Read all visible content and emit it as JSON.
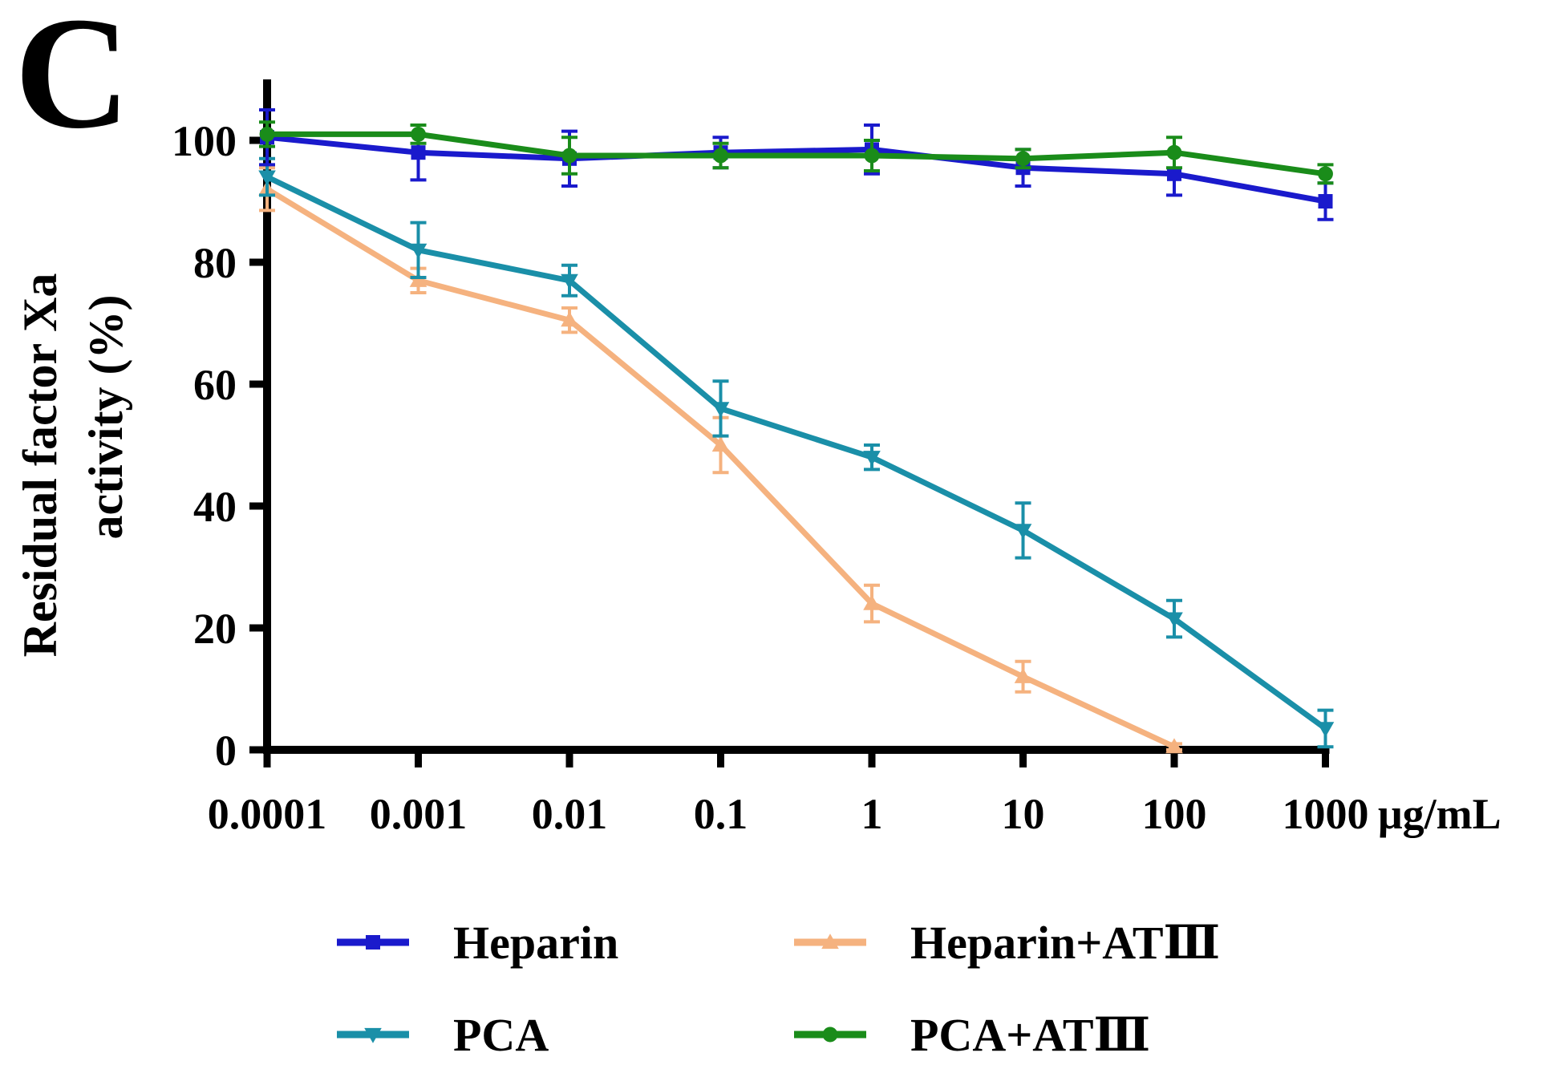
{
  "panel_label": "C",
  "chart_data": {
    "type": "line",
    "title": "",
    "ylabel_line1": "Residual factor Xa",
    "ylabel_line2": "activity (%)",
    "xunit": "μg/mL",
    "x_scale": "log",
    "categories": [
      "0.0001",
      "0.001",
      "0.01",
      "0.1",
      "1",
      "10",
      "100",
      "1000"
    ],
    "ylim": [
      0,
      110
    ],
    "yticks": [
      "0",
      "20",
      "40",
      "60",
      "80",
      "100"
    ],
    "grid": false,
    "legend_position": "bottom",
    "series": [
      {
        "name": "Heparin",
        "color": "#1a1acc",
        "marker": "square",
        "values": [
          100.5,
          98,
          97,
          98,
          98.5,
          95.5,
          94.5,
          90
        ],
        "errors": [
          4.5,
          4.5,
          4.5,
          2.5,
          4,
          3,
          3.5,
          3
        ]
      },
      {
        "name": "Heparin+ATⅢ",
        "color": "#f5b27f",
        "marker": "triangle-up",
        "values": [
          92,
          77,
          70.5,
          50,
          24,
          12,
          0.5,
          null
        ],
        "errors": [
          3.5,
          2,
          2,
          4.5,
          3,
          2.5,
          0.5,
          null
        ]
      },
      {
        "name": "PCA",
        "color": "#1a8fa8",
        "marker": "triangle-down",
        "values": [
          94,
          82,
          77,
          56,
          48,
          36,
          21.5,
          3.5
        ],
        "errors": [
          3,
          4.5,
          2.5,
          4.5,
          2,
          4.5,
          3,
          3
        ]
      },
      {
        "name": "PCA+ATⅢ",
        "color": "#1a8c1a",
        "marker": "circle",
        "values": [
          101,
          101,
          97.5,
          97.5,
          97.5,
          97,
          98,
          94.5
        ],
        "errors": [
          2,
          1.5,
          3,
          2,
          2.5,
          1.5,
          2.5,
          1.5
        ]
      }
    ]
  }
}
